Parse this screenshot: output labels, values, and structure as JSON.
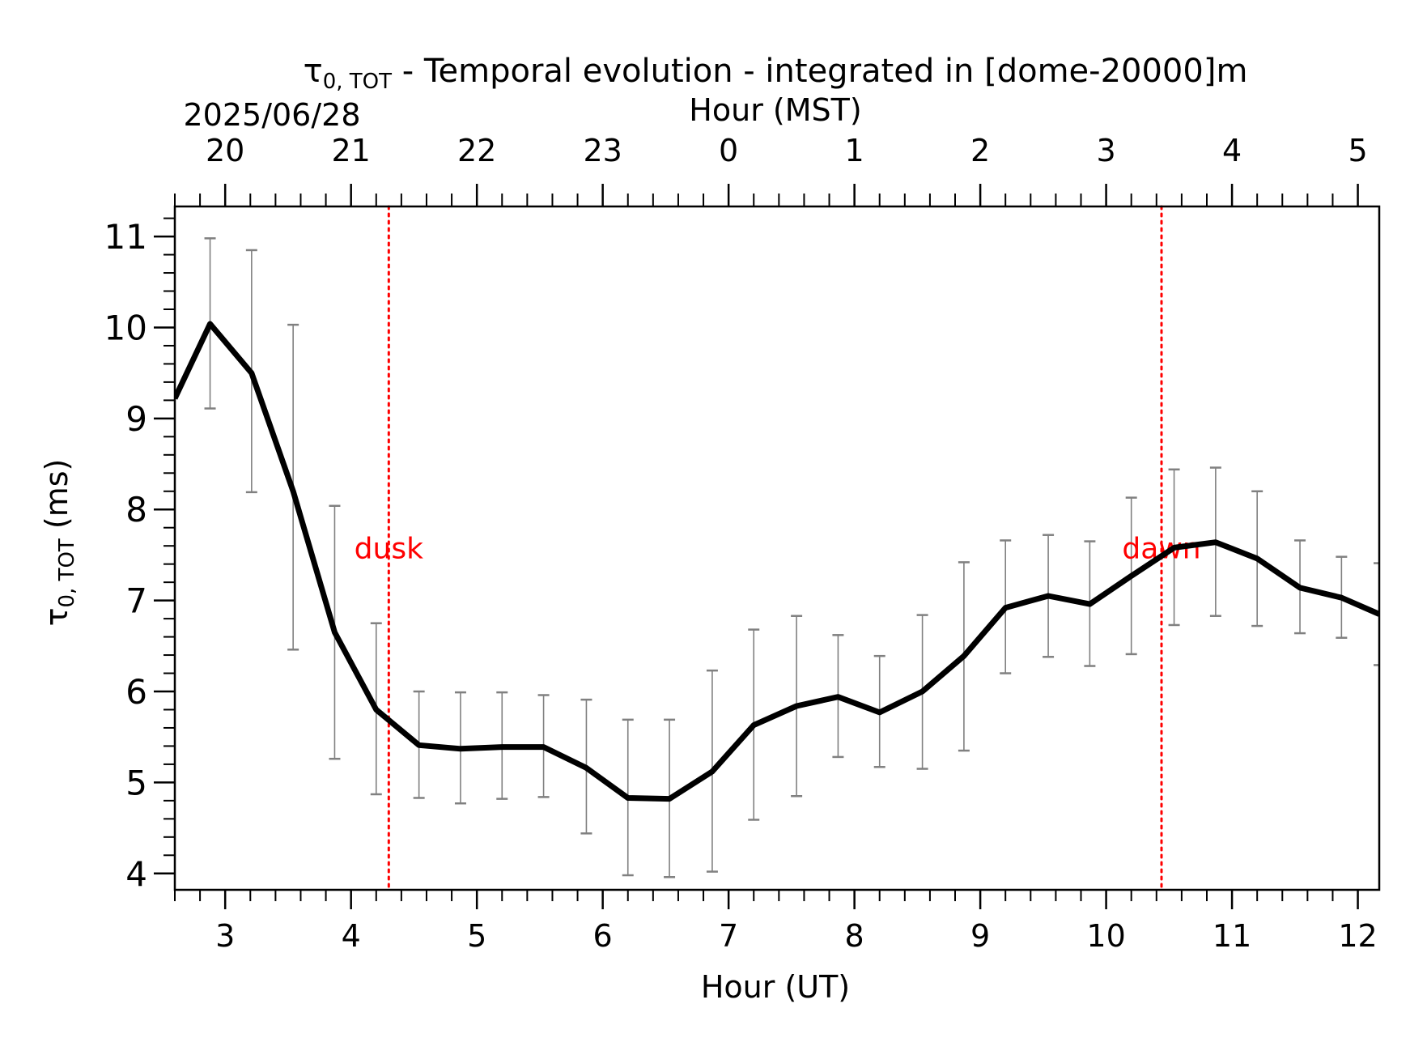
{
  "chart_data": {
    "type": "line",
    "title": {
      "symbol": "τ",
      "subscript": "0, TOT",
      "text": " - Temporal evolution - integrated in [dome-20000]m"
    },
    "date_label": "2025/06/28",
    "xlabel": "Hour (UT)",
    "x2label": "Hour (MST)",
    "ylabel": {
      "symbol": "τ",
      "subscript": "0, TOT",
      "text": " (ms)"
    },
    "xlim": [
      2.6,
      12.17
    ],
    "ylim": [
      3.82,
      11.33
    ],
    "xticks": [
      3,
      4,
      5,
      6,
      7,
      8,
      9,
      10,
      11,
      12
    ],
    "yticks": [
      4,
      5,
      6,
      7,
      8,
      9,
      10,
      11
    ],
    "x2ticks": [
      {
        "ut": 3,
        "label": "20"
      },
      {
        "ut": 4,
        "label": "21"
      },
      {
        "ut": 5,
        "label": "22"
      },
      {
        "ut": 6,
        "label": "23"
      },
      {
        "ut": 7,
        "label": "0"
      },
      {
        "ut": 8,
        "label": "1"
      },
      {
        "ut": 9,
        "label": "2"
      },
      {
        "ut": 10,
        "label": "3"
      },
      {
        "ut": 11,
        "label": "4"
      },
      {
        "ut": 12,
        "label": "5"
      }
    ],
    "series": [
      {
        "line_color": "#000000",
        "errorbar_color": "#808080",
        "x": [
          2.6,
          2.88,
          3.21,
          3.54,
          3.87,
          4.2,
          4.54,
          4.87,
          5.2,
          5.53,
          5.87,
          6.2,
          6.53,
          6.87,
          7.2,
          7.54,
          7.87,
          8.2,
          8.54,
          8.87,
          9.2,
          9.54,
          9.87,
          10.2,
          10.54,
          10.87,
          11.2,
          11.54,
          11.87,
          12.17
        ],
        "y": [
          9.22,
          10.04,
          9.5,
          8.2,
          6.65,
          5.8,
          5.41,
          5.37,
          5.39,
          5.39,
          5.16,
          4.83,
          4.82,
          5.12,
          5.63,
          5.84,
          5.94,
          5.77,
          6.0,
          6.39,
          6.92,
          7.05,
          6.96,
          7.27,
          7.58,
          7.64,
          7.46,
          7.14,
          7.03,
          6.85
        ],
        "yerr_low": [
          null,
          9.11,
          8.19,
          6.46,
          5.26,
          4.87,
          4.83,
          4.77,
          4.82,
          4.84,
          4.44,
          3.98,
          3.96,
          4.02,
          4.59,
          4.85,
          5.28,
          5.17,
          5.15,
          5.35,
          6.2,
          6.38,
          6.28,
          6.41,
          6.73,
          6.83,
          6.72,
          6.64,
          6.59,
          6.29
        ],
        "yerr_high": [
          null,
          10.98,
          10.85,
          10.03,
          8.04,
          6.75,
          6.0,
          5.99,
          5.99,
          5.96,
          5.91,
          5.69,
          5.69,
          6.23,
          6.68,
          6.83,
          6.62,
          6.39,
          6.84,
          7.42,
          7.66,
          7.72,
          7.65,
          8.13,
          8.44,
          8.46,
          8.2,
          7.66,
          7.48,
          7.41
        ]
      }
    ],
    "annotations": [
      {
        "label": "dusk",
        "x": 4.3,
        "color": "#ff0000",
        "style": "dotted",
        "label_y": 7.58
      },
      {
        "label": "dawn",
        "x": 10.44,
        "color": "#ff0000",
        "style": "dotted",
        "label_y": 7.58
      }
    ],
    "grid": false,
    "legend": "none"
  }
}
